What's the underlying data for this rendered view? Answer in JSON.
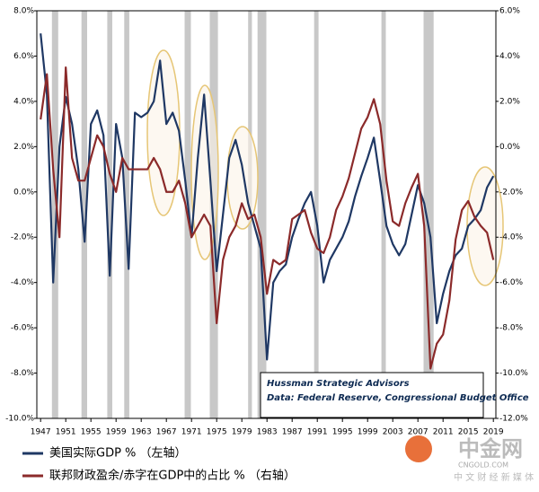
{
  "chart_data": {
    "type": "line",
    "x": [
      1947,
      1948,
      1949,
      1950,
      1951,
      1952,
      1953,
      1954,
      1955,
      1956,
      1957,
      1958,
      1959,
      1960,
      1961,
      1962,
      1963,
      1964,
      1965,
      1966,
      1967,
      1968,
      1969,
      1970,
      1971,
      1972,
      1973,
      1974,
      1975,
      1976,
      1977,
      1978,
      1979,
      1980,
      1981,
      1982,
      1983,
      1984,
      1985,
      1986,
      1987,
      1988,
      1989,
      1990,
      1991,
      1992,
      1993,
      1994,
      1995,
      1996,
      1997,
      1998,
      1999,
      2000,
      2001,
      2002,
      2003,
      2004,
      2005,
      2006,
      2007,
      2008,
      2009,
      2010,
      2011,
      2012,
      2013,
      2014,
      2015,
      2016,
      2017,
      2018,
      2019
    ],
    "series": [
      {
        "name": "美国实际GDP % （左轴）",
        "color": "#1f3864",
        "axis": "y",
        "values": [
          7.0,
          4.3,
          -4.0,
          2.0,
          4.2,
          3.0,
          1.0,
          -2.2,
          3.0,
          3.6,
          2.5,
          -3.7,
          3.0,
          1.5,
          -3.4,
          3.5,
          3.3,
          3.5,
          4.0,
          5.8,
          3.0,
          3.5,
          2.7,
          0.5,
          -2.0,
          1.5,
          4.3,
          0.5,
          -3.5,
          -1.0,
          1.5,
          2.3,
          1.2,
          -0.5,
          -1.5,
          -2.5,
          -7.4,
          -4.0,
          -3.5,
          -3.2,
          -2.0,
          -1.2,
          -0.5,
          0.0,
          -1.5,
          -4.0,
          -3.0,
          -2.5,
          -2.0,
          -1.3,
          -0.2,
          0.7,
          1.5,
          2.4,
          0.5,
          -1.5,
          -2.3,
          -2.8,
          -2.3,
          -1.0,
          0.3,
          -0.5,
          -2.0,
          -5.8,
          -4.5,
          -3.5,
          -2.8,
          -2.5,
          -1.5,
          -1.2,
          -0.8,
          0.2,
          0.7
        ]
      },
      {
        "name": "联邦财政盈余/赤字在GDP中的占比 % （右轴）",
        "color": "#8b2a2a",
        "axis": "y2",
        "values": [
          1.2,
          3.2,
          -1.0,
          -4.0,
          3.5,
          -0.5,
          -1.5,
          -1.5,
          -0.5,
          0.5,
          0.0,
          -1.2,
          -2.0,
          -0.5,
          -1.0,
          -1.0,
          -1.0,
          -1.0,
          -0.5,
          -1.0,
          -2.0,
          -2.0,
          -1.5,
          -2.5,
          -4.0,
          -3.5,
          -3.0,
          -3.5,
          -7.8,
          -5.0,
          -4.0,
          -3.5,
          -2.5,
          -3.2,
          -3.0,
          -4.0,
          -6.5,
          -5.0,
          -5.2,
          -5.0,
          -3.2,
          -3.0,
          -2.8,
          -3.8,
          -4.5,
          -4.7,
          -4.0,
          -2.8,
          -2.2,
          -1.4,
          -0.3,
          0.8,
          1.3,
          2.1,
          1.0,
          -1.5,
          -3.3,
          -3.5,
          -2.5,
          -1.8,
          -1.2,
          -3.5,
          -9.8,
          -8.7,
          -8.3,
          -6.8,
          -4.1,
          -2.8,
          -2.4,
          -3.1,
          -3.5,
          -3.8,
          -5.0
        ]
      }
    ],
    "recessions": [
      [
        1948.8,
        1949.8
      ],
      [
        1953.5,
        1954.4
      ],
      [
        1957.6,
        1958.4
      ],
      [
        1960.3,
        1961.1
      ],
      [
        1969.9,
        1970.9
      ],
      [
        1973.9,
        1975.2
      ],
      [
        1980.0,
        1980.6
      ],
      [
        1981.5,
        1982.9
      ],
      [
        1990.5,
        1991.2
      ],
      [
        2001.2,
        2001.9
      ],
      [
        2007.9,
        2009.5
      ]
    ],
    "recession_color": "#c8c8c8",
    "xlim": [
      1946.4,
      2019.4
    ],
    "xticks": [
      1947,
      1951,
      1955,
      1959,
      1963,
      1967,
      1971,
      1975,
      1979,
      1983,
      1987,
      1991,
      1995,
      1999,
      2003,
      2007,
      2011,
      2015,
      2019
    ],
    "ylim": [
      -10,
      8
    ],
    "yticks": [
      {
        "value": -10,
        "label": "-10.0%"
      },
      {
        "value": -8,
        "label": "-8.0%"
      },
      {
        "value": -6,
        "label": "-6.0%"
      },
      {
        "value": -4,
        "label": "-4.0%"
      },
      {
        "value": -2,
        "label": "-2.0%"
      },
      {
        "value": 0,
        "label": "0.0%"
      },
      {
        "value": 2,
        "label": "2.0%"
      },
      {
        "value": 4,
        "label": "4.0%"
      },
      {
        "value": 6,
        "label": "6.0%"
      },
      {
        "value": 8,
        "label": "8.0%"
      }
    ],
    "y2lim": [
      -12,
      6
    ],
    "y2ticks": [
      {
        "value": -12,
        "label": "-12.0%"
      },
      {
        "value": -10,
        "label": "-10.0%"
      },
      {
        "value": -8,
        "label": "-8.0%"
      },
      {
        "value": -6,
        "label": "-6.0%"
      },
      {
        "value": -4,
        "label": "-4.0%"
      },
      {
        "value": -2,
        "label": "-2.0%"
      },
      {
        "value": 0,
        "label": "0.0%"
      },
      {
        "value": 2,
        "label": "2.0%"
      },
      {
        "value": 4,
        "label": "4.0%"
      },
      {
        "value": 6,
        "label": "6.0%"
      }
    ],
    "grid": false,
    "annotation": [
      "Hussman Strategic Advisors",
      "Data: Federal Reserve, Congressional Budget Office"
    ],
    "watermark": {
      "logo": "中金网",
      "site": "CNGOLD.COM",
      "slogan": "中 文 财 经 新 媒 体"
    }
  }
}
